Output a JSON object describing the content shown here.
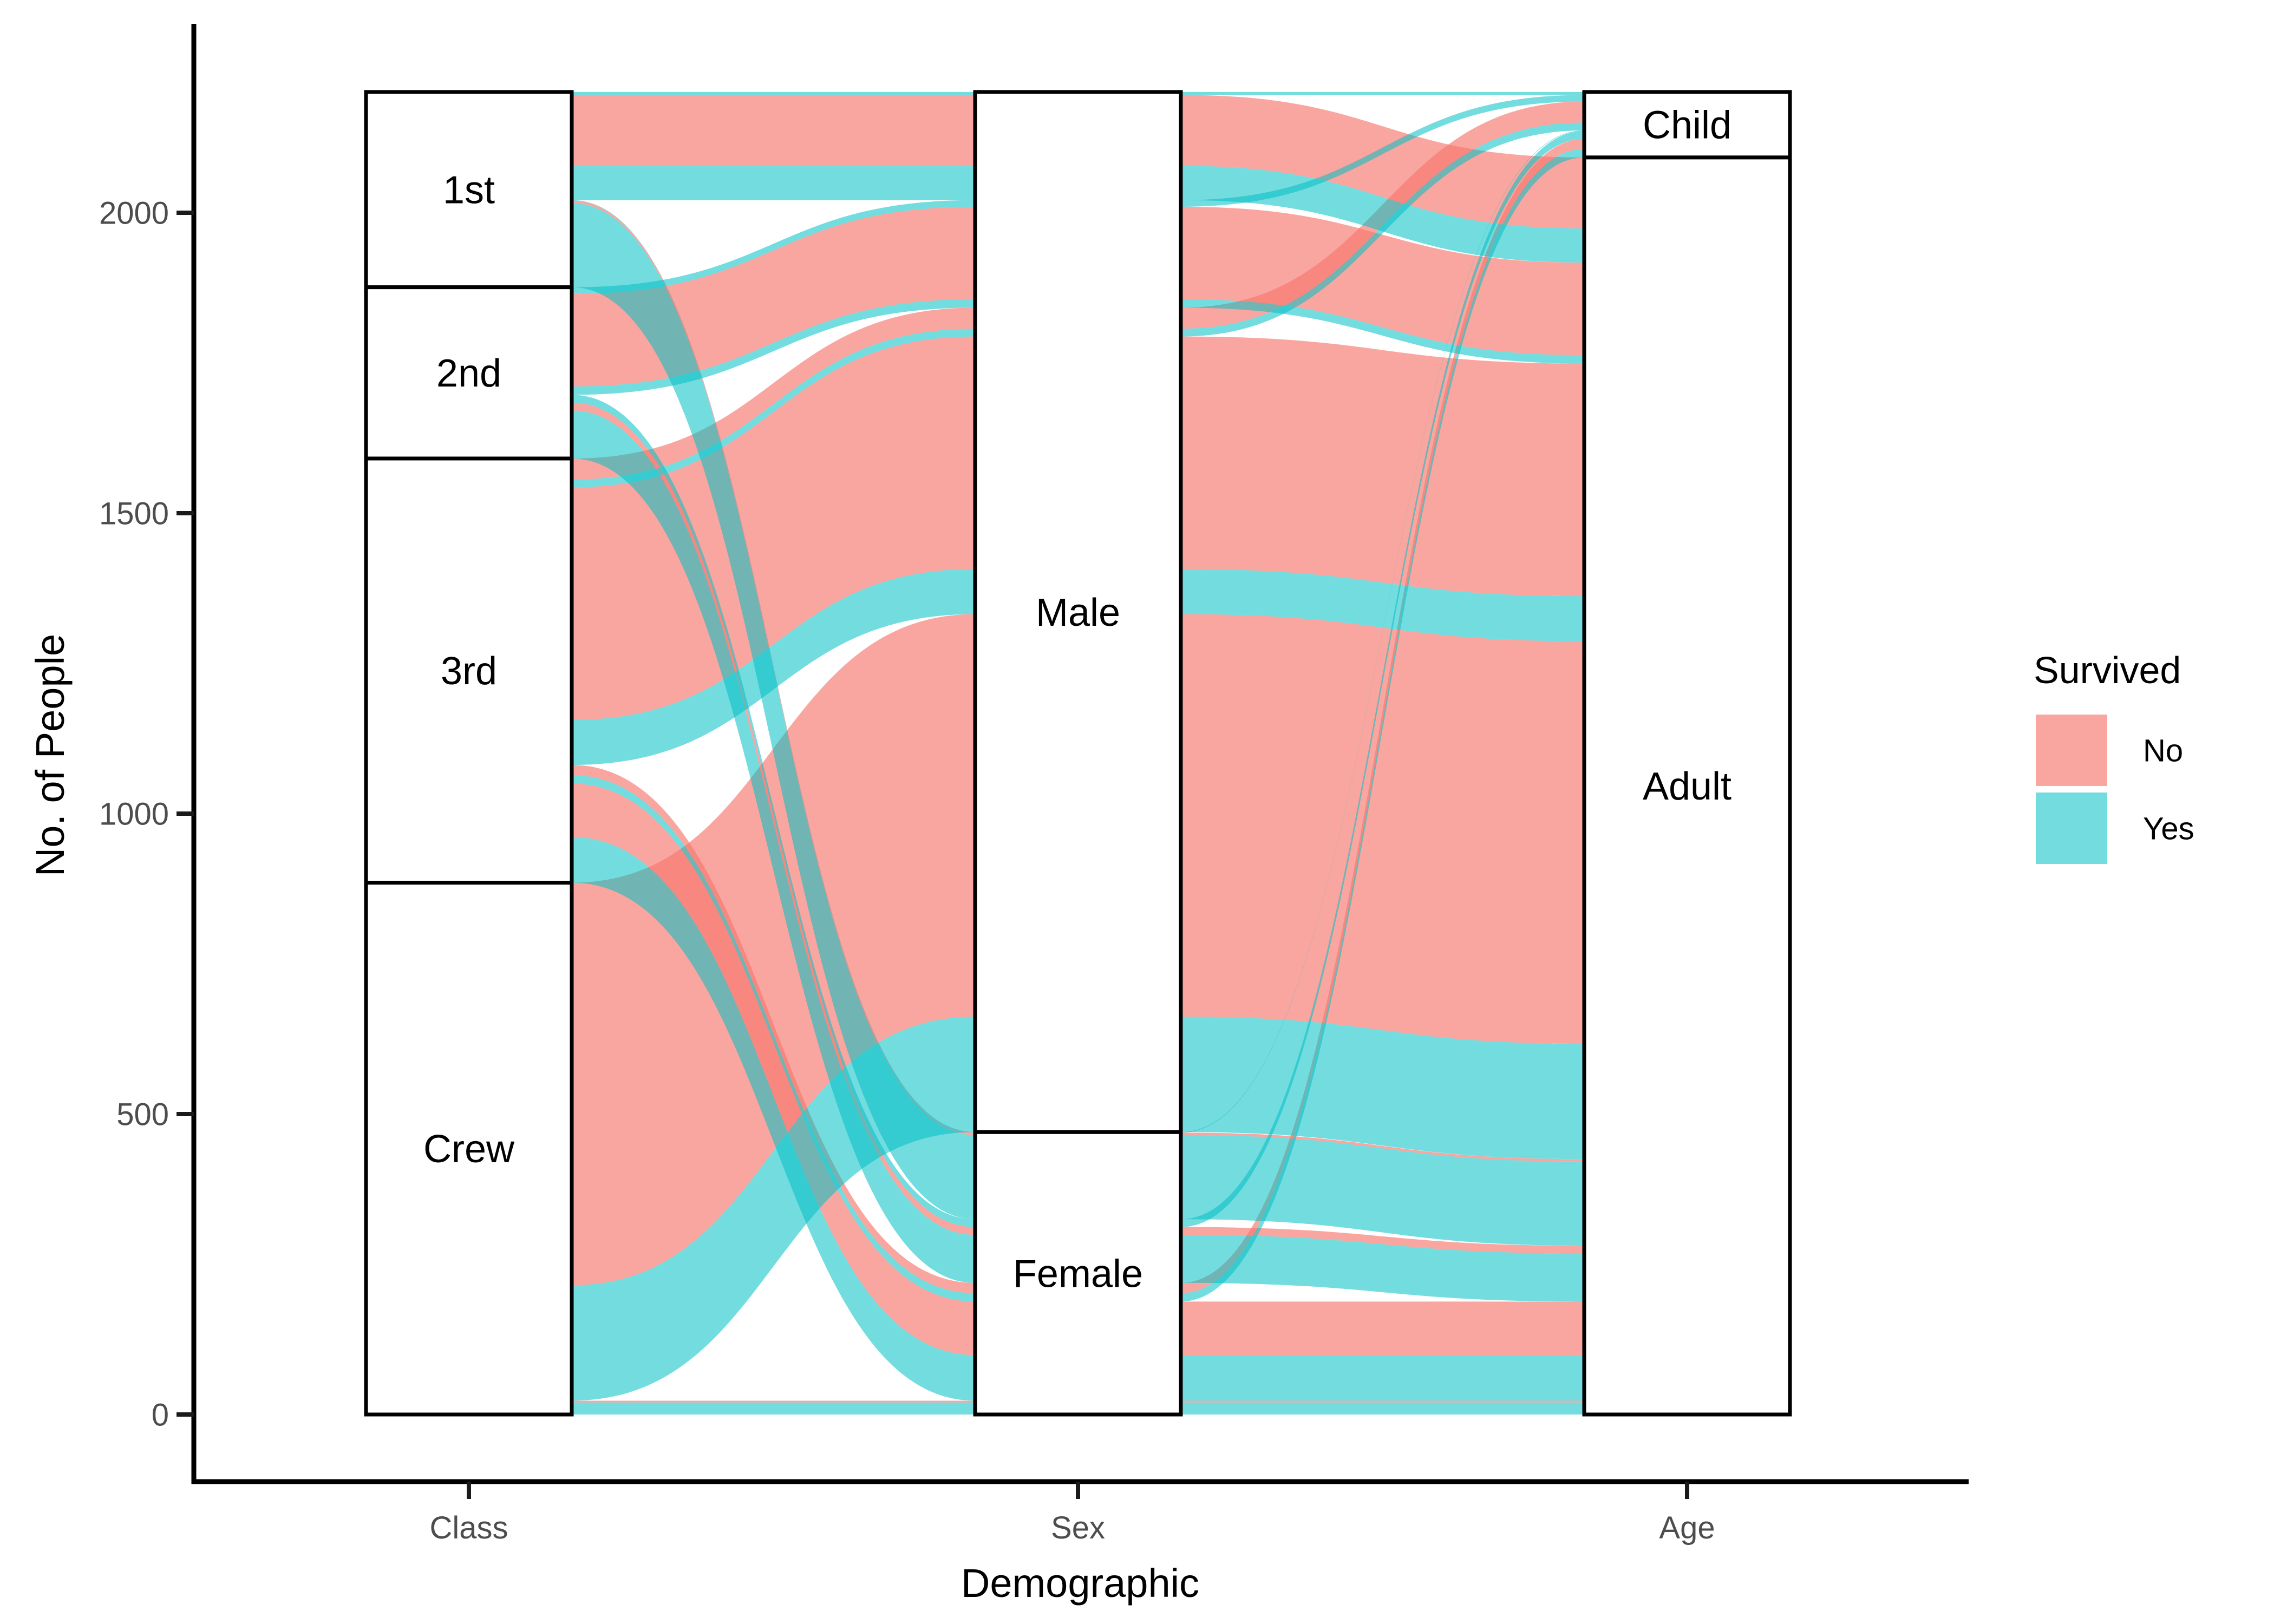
{
  "chart_data": {
    "type": "alluvial",
    "title": "",
    "xlabel": "Demographic",
    "ylabel": "No. of People",
    "axes": [
      "Class",
      "Sex",
      "Age"
    ],
    "y_ticks": [
      0,
      500,
      1000,
      1500,
      2000
    ],
    "y_range": [
      0,
      2201
    ],
    "grid": false,
    "legend_position": "right",
    "legend": {
      "title": "Survived",
      "entries": [
        {
          "label": "No",
          "color": "#F8766D",
          "opacity": 0.65
        },
        {
          "label": "Yes",
          "color": "#00BFC4",
          "opacity": 0.55
        }
      ]
    },
    "strata": {
      "Class": [
        {
          "label": "1st",
          "n": 325
        },
        {
          "label": "2nd",
          "n": 285
        },
        {
          "label": "3rd",
          "n": 706
        },
        {
          "label": "Crew",
          "n": 885
        }
      ],
      "Sex": [
        {
          "label": "Male",
          "n": 1731
        },
        {
          "label": "Female",
          "n": 470
        }
      ],
      "Age": [
        {
          "label": "Child",
          "n": 109
        },
        {
          "label": "Adult",
          "n": 2092
        }
      ]
    },
    "alluvia": [
      {
        "Class": "1st",
        "Sex": "Male",
        "Age": "Child",
        "Survived": "Yes",
        "n": 5
      },
      {
        "Class": "1st",
        "Sex": "Male",
        "Age": "Adult",
        "Survived": "No",
        "n": 118
      },
      {
        "Class": "1st",
        "Sex": "Male",
        "Age": "Adult",
        "Survived": "Yes",
        "n": 57
      },
      {
        "Class": "1st",
        "Sex": "Female",
        "Age": "Child",
        "Survived": "Yes",
        "n": 1
      },
      {
        "Class": "1st",
        "Sex": "Female",
        "Age": "Adult",
        "Survived": "No",
        "n": 4
      },
      {
        "Class": "1st",
        "Sex": "Female",
        "Age": "Adult",
        "Survived": "Yes",
        "n": 140
      },
      {
        "Class": "2nd",
        "Sex": "Male",
        "Age": "Child",
        "Survived": "Yes",
        "n": 11
      },
      {
        "Class": "2nd",
        "Sex": "Male",
        "Age": "Adult",
        "Survived": "No",
        "n": 154
      },
      {
        "Class": "2nd",
        "Sex": "Male",
        "Age": "Adult",
        "Survived": "Yes",
        "n": 14
      },
      {
        "Class": "2nd",
        "Sex": "Female",
        "Age": "Child",
        "Survived": "Yes",
        "n": 13
      },
      {
        "Class": "2nd",
        "Sex": "Female",
        "Age": "Adult",
        "Survived": "No",
        "n": 13
      },
      {
        "Class": "2nd",
        "Sex": "Female",
        "Age": "Adult",
        "Survived": "Yes",
        "n": 80
      },
      {
        "Class": "3rd",
        "Sex": "Male",
        "Age": "Child",
        "Survived": "No",
        "n": 35
      },
      {
        "Class": "3rd",
        "Sex": "Male",
        "Age": "Child",
        "Survived": "Yes",
        "n": 13
      },
      {
        "Class": "3rd",
        "Sex": "Male",
        "Age": "Adult",
        "Survived": "No",
        "n": 387
      },
      {
        "Class": "3rd",
        "Sex": "Male",
        "Age": "Adult",
        "Survived": "Yes",
        "n": 75
      },
      {
        "Class": "3rd",
        "Sex": "Female",
        "Age": "Child",
        "Survived": "No",
        "n": 17
      },
      {
        "Class": "3rd",
        "Sex": "Female",
        "Age": "Child",
        "Survived": "Yes",
        "n": 14
      },
      {
        "Class": "3rd",
        "Sex": "Female",
        "Age": "Adult",
        "Survived": "No",
        "n": 89
      },
      {
        "Class": "3rd",
        "Sex": "Female",
        "Age": "Adult",
        "Survived": "Yes",
        "n": 76
      },
      {
        "Class": "Crew",
        "Sex": "Male",
        "Age": "Adult",
        "Survived": "No",
        "n": 670
      },
      {
        "Class": "Crew",
        "Sex": "Male",
        "Age": "Adult",
        "Survived": "Yes",
        "n": 192
      },
      {
        "Class": "Crew",
        "Sex": "Female",
        "Age": "Adult",
        "Survived": "No",
        "n": 3
      },
      {
        "Class": "Crew",
        "Sex": "Female",
        "Age": "Adult",
        "Survived": "Yes",
        "n": 20
      }
    ]
  }
}
